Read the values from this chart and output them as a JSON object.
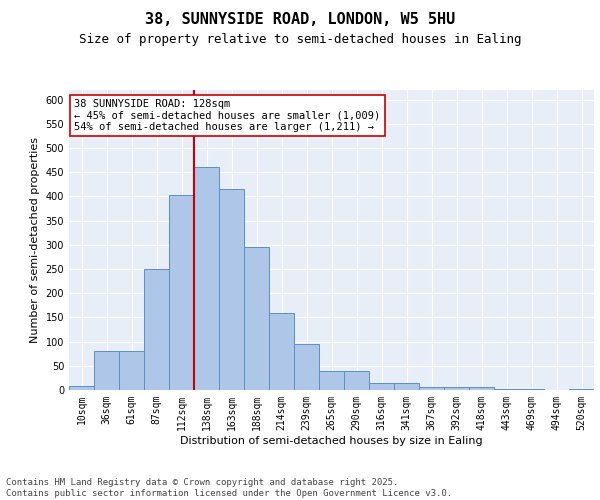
{
  "title": "38, SUNNYSIDE ROAD, LONDON, W5 5HU",
  "subtitle": "Size of property relative to semi-detached houses in Ealing",
  "xlabel": "Distribution of semi-detached houses by size in Ealing",
  "ylabel": "Number of semi-detached properties",
  "bin_labels": [
    "10sqm",
    "36sqm",
    "61sqm",
    "87sqm",
    "112sqm",
    "138sqm",
    "163sqm",
    "188sqm",
    "214sqm",
    "239sqm",
    "265sqm",
    "290sqm",
    "316sqm",
    "341sqm",
    "367sqm",
    "392sqm",
    "418sqm",
    "443sqm",
    "469sqm",
    "494sqm",
    "520sqm"
  ],
  "bar_values": [
    8,
    80,
    80,
    250,
    403,
    460,
    415,
    295,
    160,
    95,
    40,
    40,
    15,
    15,
    7,
    7,
    7,
    2,
    2,
    0,
    3
  ],
  "bar_color": "#aec6e8",
  "bar_edge_color": "#5b8fc9",
  "vline_color": "#cc0000",
  "annotation_text": "38 SUNNYSIDE ROAD: 128sqm\n← 45% of semi-detached houses are smaller (1,009)\n54% of semi-detached houses are larger (1,211) →",
  "annotation_box_color": "#ffffff",
  "annotation_box_edge_color": "#cc0000",
  "footer_text": "Contains HM Land Registry data © Crown copyright and database right 2025.\nContains public sector information licensed under the Open Government Licence v3.0.",
  "ylim": [
    0,
    620
  ],
  "yticks": [
    0,
    50,
    100,
    150,
    200,
    250,
    300,
    350,
    400,
    450,
    500,
    550,
    600
  ],
  "background_color": "#e8eef8",
  "grid_color": "#ffffff",
  "title_fontsize": 11,
  "subtitle_fontsize": 9,
  "axis_label_fontsize": 8,
  "tick_fontsize": 7,
  "annotation_fontsize": 7.5,
  "footer_fontsize": 6.5
}
